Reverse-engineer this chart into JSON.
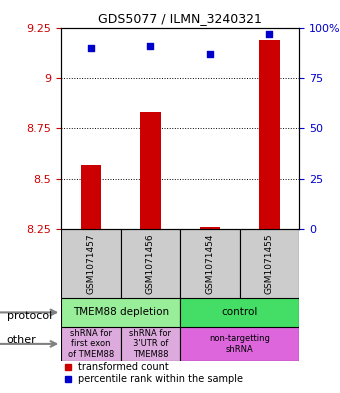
{
  "title": "GDS5077 / ILMN_3240321",
  "samples": [
    "GSM1071457",
    "GSM1071456",
    "GSM1071454",
    "GSM1071455"
  ],
  "bar_values": [
    8.57,
    8.83,
    8.26,
    9.19
  ],
  "bar_bottom": [
    8.25,
    8.25,
    8.25,
    8.25
  ],
  "percentile_values": [
    90,
    91,
    87,
    97
  ],
  "ylim": [
    8.25,
    9.25
  ],
  "yticks": [
    8.25,
    8.5,
    8.75,
    9.0,
    9.25
  ],
  "ytick_labels": [
    "8.25",
    "8.5",
    "8.75",
    "9",
    "9.25"
  ],
  "y2ticks": [
    0,
    25,
    50,
    75,
    100
  ],
  "y2tick_labels": [
    "0",
    "25",
    "50",
    "75",
    "100%"
  ],
  "bar_color": "#cc0000",
  "dot_color": "#0000cc",
  "protocol_colors": [
    "#99ff99",
    "#99ff99",
    "#33cc66",
    "#33cc66"
  ],
  "protocol_labels_text": [
    [
      "TMEM88 depletion",
      0,
      2
    ],
    [
      "control",
      2,
      4
    ]
  ],
  "protocol_bg": [
    [
      "#99ee99",
      0,
      2
    ],
    [
      "#33dd55",
      2,
      4
    ]
  ],
  "other_labels_text": [
    [
      "shRNA for\nfirst exon\nof TMEM88",
      0,
      1
    ],
    [
      "shRNA for\n3'UTR of\nTMEM88",
      1,
      2
    ],
    [
      "non-targetting\nshRNA",
      2,
      4
    ]
  ],
  "other_bg": [
    [
      "#eeaaee",
      0,
      1
    ],
    [
      "#eeaaee",
      1,
      2
    ],
    [
      "#ee88ee",
      2,
      4
    ]
  ],
  "left_labels": [
    [
      "protocol",
      0.5
    ],
    [
      "other",
      1.5
    ]
  ],
  "legend_items": [
    {
      "color": "#cc0000",
      "label": "transformed count"
    },
    {
      "color": "#0000cc",
      "label": "percentile rank within the sample"
    }
  ]
}
